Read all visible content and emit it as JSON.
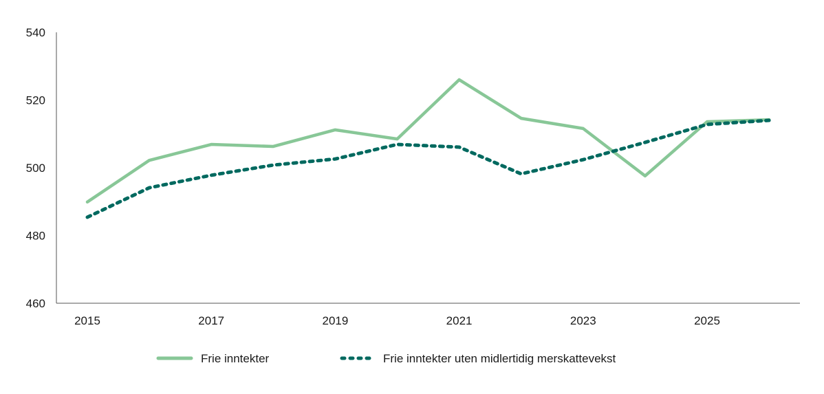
{
  "chart_data": {
    "type": "line",
    "title": "",
    "xlabel": "",
    "ylabel": "",
    "ylim": [
      460,
      540
    ],
    "yticks": [
      460,
      480,
      500,
      520,
      540
    ],
    "xticks": [
      2015,
      2017,
      2019,
      2021,
      2023,
      2025
    ],
    "x": [
      2015,
      2016,
      2017,
      2018,
      2019,
      2020,
      2021,
      2022,
      2023,
      2024,
      2025,
      2026
    ],
    "grid": false,
    "legend": "bottom",
    "series": [
      {
        "name": "Frie inntekter",
        "color": "#88c797",
        "style": "solid",
        "values": [
          489.9,
          502.2,
          506.9,
          506.3,
          511.2,
          508.5,
          526.0,
          514.6,
          511.6,
          497.6,
          513.6,
          514.2
        ]
      },
      {
        "name": "Frie inntekter uten midlertidig merskattevekst",
        "color": "#00695f",
        "style": "dotted",
        "values": [
          485.4,
          494.1,
          497.8,
          500.8,
          502.6,
          506.9,
          506.1,
          498.2,
          502.4,
          507.5,
          512.8,
          514.0
        ]
      }
    ]
  }
}
